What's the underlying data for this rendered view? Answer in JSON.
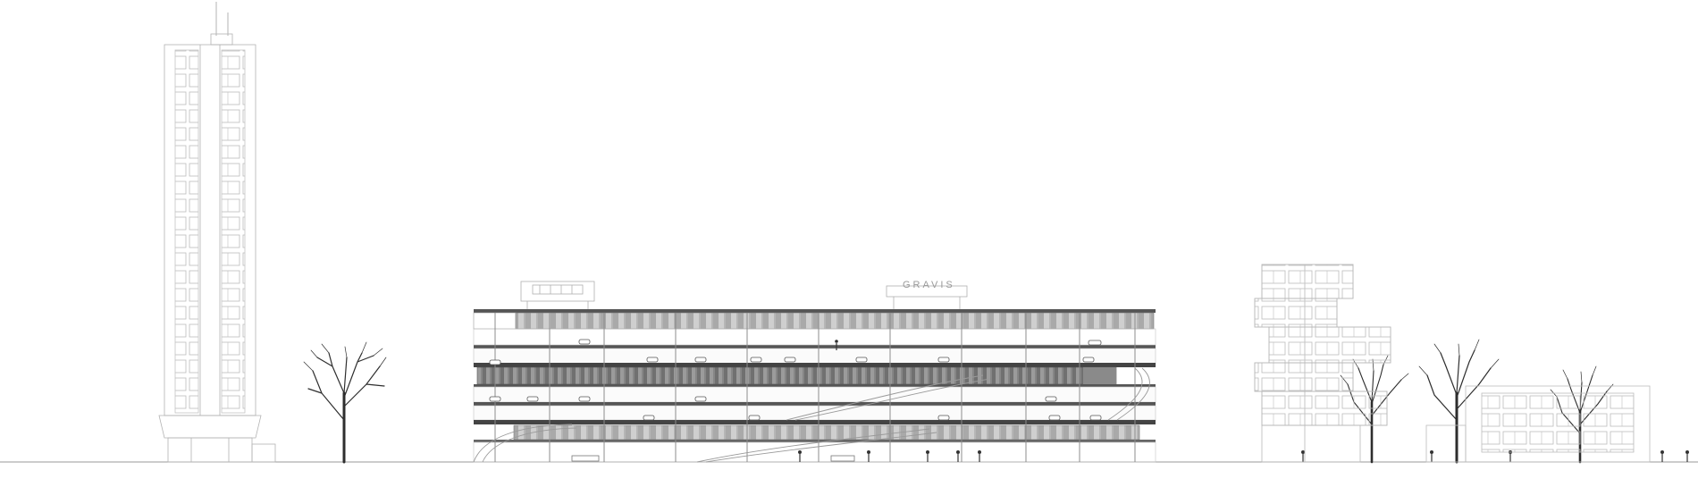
{
  "drawing": {
    "type": "architectural elevation",
    "sign_text": "GRAVIS",
    "colors": {
      "line": "#8c8c8c",
      "light_line": "#c4c4c4",
      "dark": "#3a3a3a",
      "glass": "#b5b5b5",
      "ground": "#9a9a9a",
      "tree": "#2e2e2e"
    }
  }
}
